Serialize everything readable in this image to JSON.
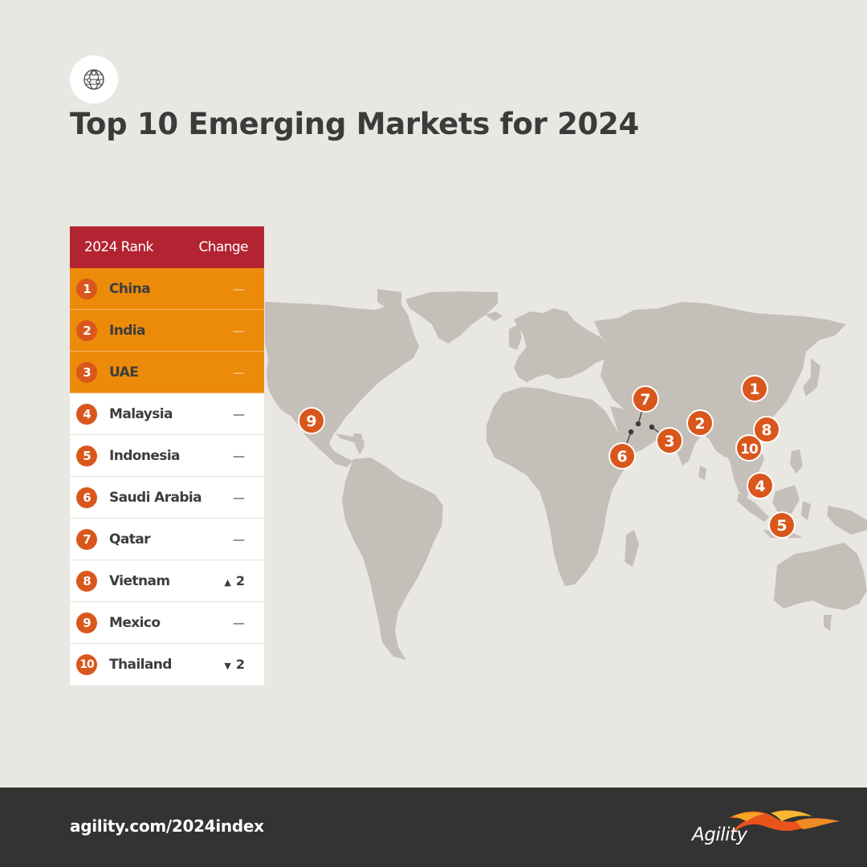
{
  "title": "Top 10 Emerging Markets for 2024",
  "table": {
    "header_rank": "2024 Rank",
    "header_change": "Change",
    "rows": [
      {
        "rank": "1",
        "country": "China",
        "change": "—",
        "direction": "none",
        "delta": ""
      },
      {
        "rank": "2",
        "country": "India",
        "change": "—",
        "direction": "none",
        "delta": ""
      },
      {
        "rank": "3",
        "country": "UAE",
        "change": "—",
        "direction": "none",
        "delta": ""
      },
      {
        "rank": "4",
        "country": "Malaysia",
        "change": "—",
        "direction": "none",
        "delta": ""
      },
      {
        "rank": "5",
        "country": "Indonesia",
        "change": "—",
        "direction": "none",
        "delta": ""
      },
      {
        "rank": "6",
        "country": "Saudi Arabia",
        "change": "—",
        "direction": "none",
        "delta": ""
      },
      {
        "rank": "7",
        "country": "Qatar",
        "change": "—",
        "direction": "none",
        "delta": ""
      },
      {
        "rank": "8",
        "country": "Vietnam",
        "change": "",
        "direction": "up",
        "arrow": "▲",
        "delta": "2"
      },
      {
        "rank": "9",
        "country": "Mexico",
        "change": "—",
        "direction": "none",
        "delta": ""
      },
      {
        "rank": "10",
        "country": "Thailand",
        "change": "",
        "direction": "down",
        "arrow": "▼",
        "delta": "2"
      }
    ]
  },
  "map_markers": [
    {
      "label": "1",
      "country": "China"
    },
    {
      "label": "2",
      "country": "India"
    },
    {
      "label": "3",
      "country": "UAE"
    },
    {
      "label": "4",
      "country": "Malaysia"
    },
    {
      "label": "5",
      "country": "Indonesia"
    },
    {
      "label": "6",
      "country": "Saudi Arabia"
    },
    {
      "label": "7",
      "country": "Qatar"
    },
    {
      "label": "8",
      "country": "Vietnam"
    },
    {
      "label": "9",
      "country": "Mexico"
    },
    {
      "label": "10",
      "country": "Thailand"
    }
  ],
  "footer": {
    "url": "agility.com/2024index",
    "brand": "Agility"
  },
  "icons": {
    "header": "globe-icon",
    "brand": "agility-bird-logo"
  },
  "colors": {
    "background": "#e9e7e2",
    "header_red": "#b32432",
    "highlight_orange": "#ec8a0a",
    "marker_orange": "#d9571c",
    "land_gray": "#c4bfb8",
    "footer": "#333333"
  }
}
